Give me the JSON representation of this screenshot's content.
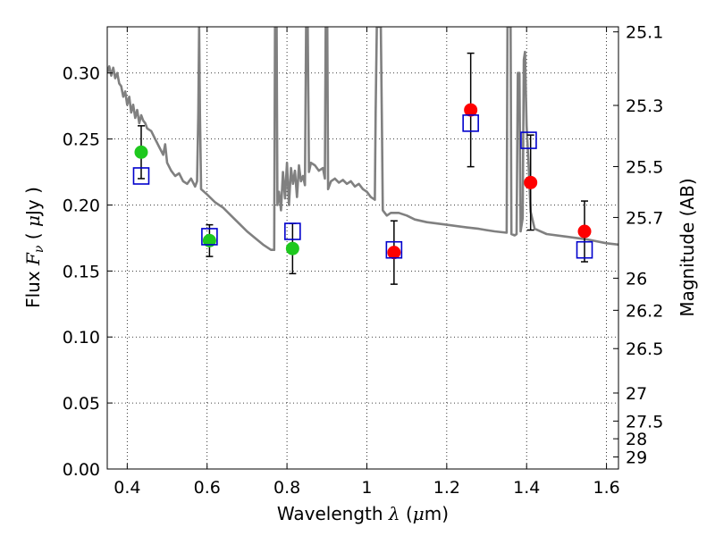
{
  "chart_data": {
    "type": "scatter",
    "xlabel": {
      "prefix": "Wavelength",
      "symbol": "λ",
      "unit_open": " (",
      "unit_mu": "μ",
      "unit_rest": "m)"
    },
    "ylabel": {
      "prefix": "Flux",
      "symbol": "F",
      "sub": "ν",
      "unit_open": "( ",
      "unit_mu": "μ",
      "unit_rest": "Jy )"
    },
    "y2label": "Magnitude (AB)",
    "xlim": [
      0.35,
      1.63
    ],
    "ylim": [
      0.0,
      0.335
    ],
    "grid": true,
    "xticks": [
      0.4,
      0.6,
      0.8,
      1.0,
      1.2,
      1.4,
      1.6
    ],
    "xtick_labels": [
      "0.4",
      "0.6",
      "0.8",
      "1",
      "1.2",
      "1.4",
      "1.6"
    ],
    "yticks": [
      0.0,
      0.05,
      0.1,
      0.15,
      0.2,
      0.25,
      0.3
    ],
    "ytick_labels": [
      "0.00",
      "0.05",
      "0.10",
      "0.15",
      "0.20",
      "0.25",
      "0.30"
    ],
    "y2ticks": [
      "25.1",
      "25.3",
      "25.5",
      "25.7",
      "26",
      "26.2",
      "26.5",
      "27",
      "27.5",
      "28",
      "29"
    ],
    "colors": {
      "sed": "#808080",
      "green": "#1ec81e",
      "red": "#ff0000",
      "model": "#0000cc",
      "errorbar": "#000000"
    },
    "green_points": [
      {
        "x": 0.435,
        "y": 0.24,
        "err": 0.02
      },
      {
        "x": 0.606,
        "y": 0.173,
        "err": 0.012
      },
      {
        "x": 0.814,
        "y": 0.167,
        "err": 0.019
      }
    ],
    "red_points": [
      {
        "x": 1.068,
        "y": 0.164,
        "err": 0.024
      },
      {
        "x": 1.26,
        "y": 0.272,
        "err": 0.043
      },
      {
        "x": 1.41,
        "y": 0.217,
        "err": 0.036
      },
      {
        "x": 1.545,
        "y": 0.18,
        "err": 0.023
      }
    ],
    "model_points": [
      {
        "x": 0.435,
        "y": 0.222
      },
      {
        "x": 0.606,
        "y": 0.176
      },
      {
        "x": 0.814,
        "y": 0.18
      },
      {
        "x": 1.068,
        "y": 0.166
      },
      {
        "x": 1.26,
        "y": 0.262
      },
      {
        "x": 1.405,
        "y": 0.249
      },
      {
        "x": 1.545,
        "y": 0.166
      }
    ],
    "sed_curve": [
      [
        0.35,
        0.3
      ],
      [
        0.355,
        0.305
      ],
      [
        0.36,
        0.298
      ],
      [
        0.365,
        0.304
      ],
      [
        0.37,
        0.296
      ],
      [
        0.375,
        0.3
      ],
      [
        0.38,
        0.292
      ],
      [
        0.385,
        0.29
      ],
      [
        0.39,
        0.282
      ],
      [
        0.395,
        0.286
      ],
      [
        0.4,
        0.276
      ],
      [
        0.405,
        0.282
      ],
      [
        0.41,
        0.27
      ],
      [
        0.415,
        0.276
      ],
      [
        0.42,
        0.266
      ],
      [
        0.425,
        0.272
      ],
      [
        0.43,
        0.262
      ],
      [
        0.435,
        0.268
      ],
      [
        0.44,
        0.264
      ],
      [
        0.445,
        0.262
      ],
      [
        0.45,
        0.258
      ],
      [
        0.46,
        0.256
      ],
      [
        0.47,
        0.25
      ],
      [
        0.48,
        0.244
      ],
      [
        0.49,
        0.238
      ],
      [
        0.495,
        0.246
      ],
      [
        0.5,
        0.232
      ],
      [
        0.51,
        0.226
      ],
      [
        0.52,
        0.222
      ],
      [
        0.53,
        0.224
      ],
      [
        0.54,
        0.218
      ],
      [
        0.55,
        0.216
      ],
      [
        0.56,
        0.22
      ],
      [
        0.57,
        0.214
      ],
      [
        0.575,
        0.218
      ],
      [
        0.578,
        0.27
      ],
      [
        0.58,
        0.335
      ],
      [
        0.582,
        0.27
      ],
      [
        0.585,
        0.212
      ],
      [
        0.6,
        0.208
      ],
      [
        0.62,
        0.202
      ],
      [
        0.64,
        0.198
      ],
      [
        0.66,
        0.192
      ],
      [
        0.68,
        0.186
      ],
      [
        0.7,
        0.18
      ],
      [
        0.72,
        0.175
      ],
      [
        0.74,
        0.17
      ],
      [
        0.76,
        0.166
      ],
      [
        0.768,
        0.166
      ],
      [
        0.77,
        0.335
      ],
      [
        0.774,
        0.335
      ],
      [
        0.776,
        0.2
      ],
      [
        0.78,
        0.21
      ],
      [
        0.785,
        0.196
      ],
      [
        0.79,
        0.225
      ],
      [
        0.795,
        0.205
      ],
      [
        0.8,
        0.232
      ],
      [
        0.805,
        0.2
      ],
      [
        0.81,
        0.228
      ],
      [
        0.815,
        0.216
      ],
      [
        0.82,
        0.226
      ],
      [
        0.825,
        0.206
      ],
      [
        0.83,
        0.23
      ],
      [
        0.835,
        0.218
      ],
      [
        0.84,
        0.222
      ],
      [
        0.845,
        0.215
      ],
      [
        0.848,
        0.335
      ],
      [
        0.852,
        0.335
      ],
      [
        0.855,
        0.225
      ],
      [
        0.86,
        0.232
      ],
      [
        0.87,
        0.23
      ],
      [
        0.88,
        0.226
      ],
      [
        0.89,
        0.228
      ],
      [
        0.895,
        0.22
      ],
      [
        0.897,
        0.335
      ],
      [
        0.901,
        0.335
      ],
      [
        0.903,
        0.212
      ],
      [
        0.91,
        0.218
      ],
      [
        0.92,
        0.22
      ],
      [
        0.93,
        0.217
      ],
      [
        0.94,
        0.219
      ],
      [
        0.95,
        0.216
      ],
      [
        0.96,
        0.218
      ],
      [
        0.97,
        0.214
      ],
      [
        0.98,
        0.216
      ],
      [
        0.99,
        0.212
      ],
      [
        1.0,
        0.21
      ],
      [
        1.01,
        0.206
      ],
      [
        1.02,
        0.204
      ],
      [
        1.022,
        0.27
      ],
      [
        1.025,
        0.335
      ],
      [
        1.035,
        0.335
      ],
      [
        1.038,
        0.25
      ],
      [
        1.04,
        0.196
      ],
      [
        1.05,
        0.192
      ],
      [
        1.06,
        0.194
      ],
      [
        1.08,
        0.194
      ],
      [
        1.1,
        0.192
      ],
      [
        1.12,
        0.189
      ],
      [
        1.15,
        0.187
      ],
      [
        1.2,
        0.185
      ],
      [
        1.25,
        0.183
      ],
      [
        1.28,
        0.182
      ],
      [
        1.3,
        0.181
      ],
      [
        1.32,
        0.18
      ],
      [
        1.35,
        0.179
      ],
      [
        1.352,
        0.335
      ],
      [
        1.36,
        0.335
      ],
      [
        1.362,
        0.178
      ],
      [
        1.37,
        0.177
      ],
      [
        1.375,
        0.178
      ],
      [
        1.378,
        0.3
      ],
      [
        1.382,
        0.3
      ],
      [
        1.385,
        0.18
      ],
      [
        1.39,
        0.19
      ],
      [
        1.393,
        0.31
      ],
      [
        1.396,
        0.316
      ],
      [
        1.4,
        0.26
      ],
      [
        1.405,
        0.23
      ],
      [
        1.41,
        0.195
      ],
      [
        1.42,
        0.182
      ],
      [
        1.45,
        0.178
      ],
      [
        1.5,
        0.176
      ],
      [
        1.55,
        0.174
      ],
      [
        1.6,
        0.171
      ],
      [
        1.63,
        0.17
      ]
    ]
  }
}
